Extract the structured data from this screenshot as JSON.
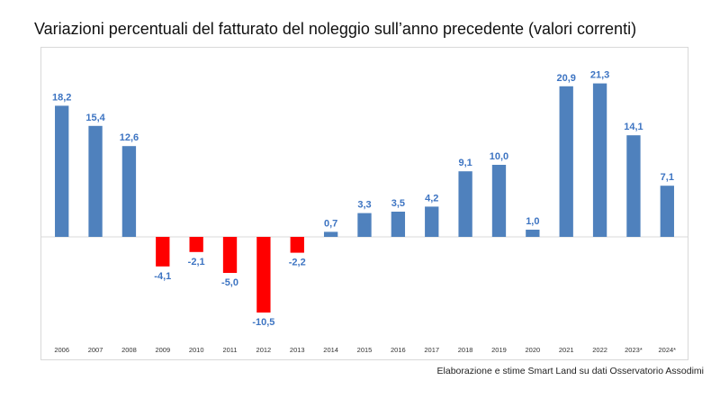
{
  "title": "Variazioni percentuali del fatturato del noleggio sull’anno precedente (valori correnti)",
  "source": "Elaborazione e stime Smart Land su dati Osservatorio Assodimi",
  "chart_data": {
    "type": "bar",
    "title": "Variazioni percentuali del fatturato del noleggio sull’anno precedente (valori correnti)",
    "categories": [
      "2006",
      "2007",
      "2008",
      "2009",
      "2010",
      "2011",
      "2012",
      "2013",
      "2014",
      "2015",
      "2016",
      "2017",
      "2018",
      "2019",
      "2020",
      "2021",
      "2022",
      "2023*",
      "2024*"
    ],
    "values": [
      18.2,
      15.4,
      12.6,
      -4.1,
      -2.1,
      -5.0,
      -10.5,
      -2.2,
      0.7,
      3.3,
      3.5,
      4.2,
      9.1,
      10.0,
      1.0,
      20.9,
      21.3,
      14.1,
      7.1
    ],
    "data_labels": [
      "18,2",
      "15,4",
      "12,6",
      "-4,1",
      "-2,1",
      "-5,0",
      "-10,5",
      "-2,2",
      "0,7",
      "3,3",
      "3,5",
      "4,2",
      "9,1",
      "10,0",
      "1,0",
      "20,9",
      "21,3",
      "14,1",
      "7,1"
    ],
    "xlabel": "",
    "ylabel": "",
    "ylim": [
      -14,
      25
    ],
    "grid": false,
    "colors": {
      "positive": "#4f81bd",
      "negative": "#ff0000",
      "label_positive": "#3d74c2",
      "label_negative": "#3d74c2",
      "axis": "#d9d9d9",
      "tick_text": "#333333"
    }
  }
}
